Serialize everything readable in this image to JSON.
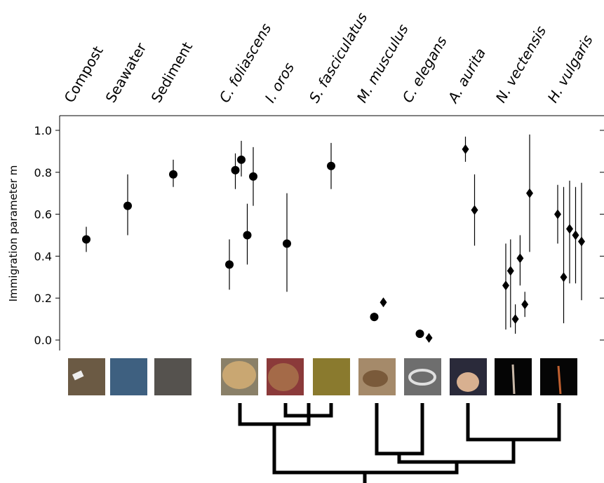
{
  "chart_data": {
    "type": "scatter",
    "y_label": "Immigration parameter m",
    "ylim": [
      -0.05,
      1.07
    ],
    "yticks": [
      {
        "value": 0,
        "label": "0.0"
      },
      {
        "value": 0.2,
        "label": "0.2"
      },
      {
        "value": 0.4,
        "label": "0.4"
      },
      {
        "value": 0.6,
        "label": "0.6"
      },
      {
        "value": 0.8,
        "label": "0.8"
      },
      {
        "value": 1,
        "label": "1.0"
      }
    ],
    "color": "#000000",
    "series": [
      {
        "name": "Compost",
        "values": [
          0.48
        ],
        "lower": [
          0.42
        ],
        "upper": [
          0.54
        ],
        "markers": [
          "circle"
        ]
      },
      {
        "name": "Seawater",
        "values": [
          0.64
        ],
        "lower": [
          0.5
        ],
        "upper": [
          0.79
        ],
        "markers": [
          "circle"
        ]
      },
      {
        "name": "Sediment",
        "values": [
          0.79
        ],
        "lower": [
          0.73
        ],
        "upper": [
          0.86
        ],
        "markers": [
          "circle"
        ]
      },
      {
        "name": "C. foliascens",
        "values": [
          0.36,
          0.81,
          0.86,
          0.5,
          0.78
        ],
        "lower": [
          0.24,
          0.72,
          0.78,
          0.36,
          0.64
        ],
        "upper": [
          0.48,
          0.89,
          0.95,
          0.65,
          0.92
        ],
        "markers": [
          "circle",
          "circle",
          "circle",
          "circle",
          "circle"
        ]
      },
      {
        "name": "I. oros",
        "values": [
          0.46
        ],
        "lower": [
          0.23
        ],
        "upper": [
          0.7
        ],
        "markers": [
          "circle"
        ]
      },
      {
        "name": "S. fasciculatus",
        "values": [
          0.83
        ],
        "lower": [
          0.72
        ],
        "upper": [
          0.94
        ],
        "markers": [
          "circle"
        ]
      },
      {
        "name": "M. musculus",
        "values": [
          0.11,
          0.18
        ],
        "lower": [
          0.09,
          0.16
        ],
        "upper": [
          0.13,
          0.2
        ],
        "markers": [
          "circle",
          "diamond"
        ]
      },
      {
        "name": "C. elegans",
        "values": [
          0.03,
          0.01
        ],
        "lower": [
          0.02,
          0.0
        ],
        "upper": [
          0.04,
          0.02
        ],
        "markers": [
          "circle",
          "diamond"
        ]
      },
      {
        "name": "A. aurita",
        "values": [
          0.91,
          0.62
        ],
        "lower": [
          0.85,
          0.45
        ],
        "upper": [
          0.97,
          0.79
        ],
        "markers": [
          "diamond",
          "diamond"
        ]
      },
      {
        "name": "N. vectensis",
        "values": [
          0.26,
          0.33,
          0.1,
          0.39,
          0.17,
          0.7
        ],
        "lower": [
          0.05,
          0.06,
          0.03,
          0.26,
          0.11,
          0.42
        ],
        "upper": [
          0.46,
          0.48,
          0.17,
          0.5,
          0.23,
          0.98
        ],
        "markers": [
          "diamond",
          "diamond",
          "diamond",
          "diamond",
          "diamond",
          "diamond"
        ]
      },
      {
        "name": "H. vulgaris",
        "values": [
          0.6,
          0.3,
          0.53,
          0.5,
          0.47
        ],
        "lower": [
          0.46,
          0.08,
          0.27,
          0.27,
          0.19
        ],
        "upper": [
          0.74,
          0.73,
          0.76,
          0.73,
          0.75
        ],
        "markers": [
          "diamond",
          "diamond",
          "diamond",
          "diamond",
          "diamond"
        ]
      }
    ]
  }
}
